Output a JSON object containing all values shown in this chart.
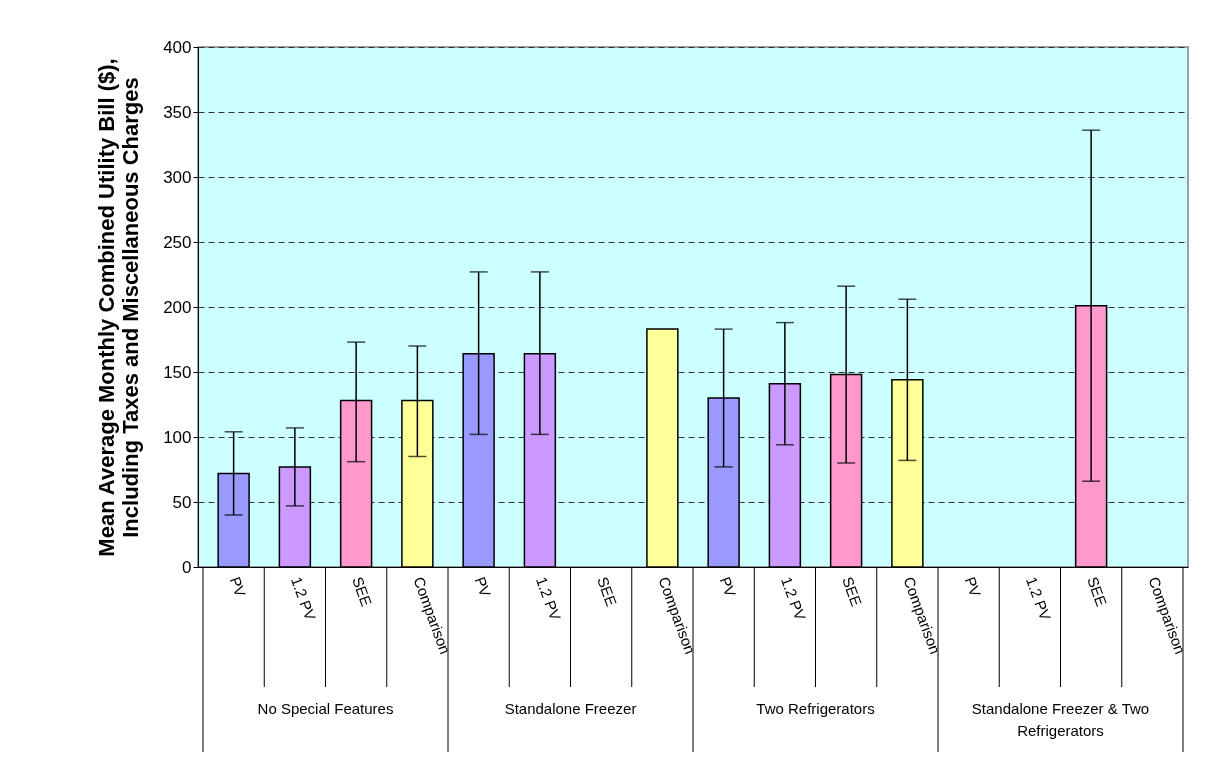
{
  "chart_data": {
    "type": "bar",
    "ylabel": "Mean Average Monthly Combined Utility Bill ($),\nIncluding Taxes and Miscellaneous Charges",
    "categories": [
      "PV",
      "1.2 PV",
      "SEE",
      "Comparison",
      "PV",
      "1.2 PV",
      "SEE",
      "Comparison",
      "PV",
      "1.2 PV",
      "SEE",
      "Comparison",
      "PV",
      "1.2 PV",
      "SEE",
      "Comparison"
    ],
    "values": [
      72,
      77,
      128,
      128,
      164,
      164,
      null,
      183,
      130,
      141,
      148,
      144,
      null,
      null,
      201,
      null
    ],
    "colors": [
      "#9999ff",
      "#cc99ff",
      "#ff99cc",
      "#ffff99",
      "#9999ff",
      "#cc99ff",
      "#ff99cc",
      "#ffff99",
      "#9999ff",
      "#cc99ff",
      "#ff99cc",
      "#ffff99",
      "#9999ff",
      "#cc99ff",
      "#ff99cc",
      "#ffff99"
    ],
    "errors": [
      [
        40,
        104
      ],
      [
        47,
        107
      ],
      [
        81,
        173
      ],
      [
        85,
        170
      ],
      [
        102,
        227
      ],
      [
        102,
        227
      ],
      null,
      null,
      [
        77,
        183
      ],
      [
        94,
        188
      ],
      [
        80,
        216
      ],
      [
        82,
        206
      ],
      null,
      null,
      [
        66,
        336
      ],
      null
    ],
    "annotations": [
      "No Special Features",
      "Standalone Freezer",
      "Two Refrigerators",
      "Standalone Freezer & Two\nRefrigerators"
    ],
    "ylim": [
      0,
      400
    ],
    "yticks": [
      0,
      50,
      100,
      150,
      200,
      250,
      300,
      350,
      400
    ],
    "grid": "y",
    "line_style": "dashed"
  }
}
